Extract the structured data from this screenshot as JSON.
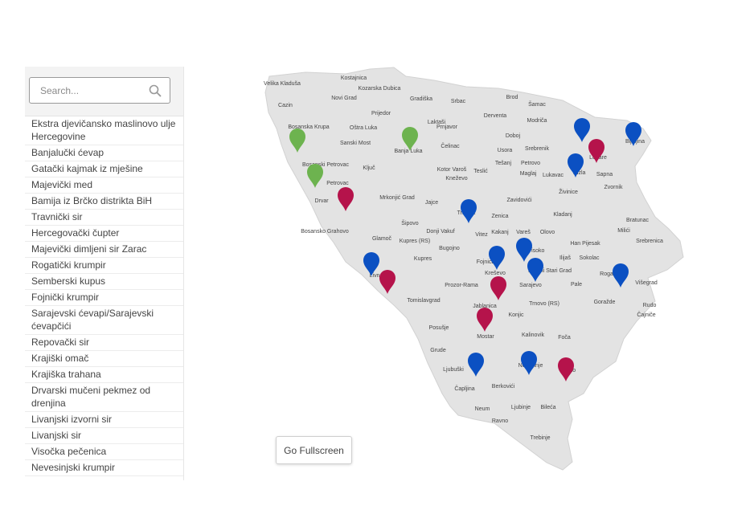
{
  "search": {
    "placeholder": "Search..."
  },
  "products": [
    "Ekstra djevičansko maslinovo ulje Hercegovine",
    "Banjalučki ćevap",
    "Gatački kajmak iz mješine",
    "Majevički med",
    "Bamija iz Brčko distrikta BiH",
    "Travnički sir",
    "Hercegovački čupter",
    "Majevički dimljeni sir Zarac",
    "Rogatički krumpir",
    "Semberski kupus",
    "Fojnički krumpir",
    "Sarajevski ćevapi/Sarajevski ćevapčići",
    "Repovački sir",
    "Krajiški omač",
    "Krajiška trahana",
    "Drvarski mučeni pekmez od drenjina",
    "Livanjski izvorni sir",
    "Livanjski sir",
    "Visočka pečenica",
    "Nevesinjski krumpir"
  ],
  "map": {
    "land_color": "#e3e3e3",
    "marker_colors": {
      "green": "#6db34f",
      "red": "#b5134b",
      "blue": "#0b50c2"
    },
    "cities": [
      "Velika Kladuša",
      "Kostajnica",
      "Kozarska Dubica",
      "Novi Grad",
      "Gradiška",
      "Srbac",
      "Brod",
      "Šamac",
      "Cazin",
      "Prijedor",
      "Laktaši",
      "Prnjavor",
      "Derventa",
      "Modriča",
      "Bosanska Krupa",
      "Oštra Luka",
      "Sanski Most",
      "Banja Luka",
      "Čelinac",
      "Doboj",
      "Usora",
      "Srebrenik",
      "Bijeljina",
      "Lopare",
      "Bosanski Petrovac",
      "Ključ",
      "Kotor Varoš",
      "Teslić",
      "Tešanj",
      "Petrovo",
      "Maglaj",
      "Lukavac",
      "Tuzla",
      "Sapna",
      "Zvornik",
      "Petrovac",
      "Kneževo",
      "Drvar",
      "Mrkonjić Grad",
      "Jajce",
      "Zavidovići",
      "Živinice",
      "Travnik",
      "Zenica",
      "Kladanj",
      "Bratunac",
      "Bosansko Grahovo",
      "Šipovo",
      "Donji Vakuf",
      "Vitez",
      "Kakanj",
      "Vareš",
      "Olovo",
      "Milići",
      "Glamoč",
      "Kupres (RS)",
      "Bugojno",
      "Han Pijesak",
      "Srebrenica",
      "Kupres",
      "Visoko",
      "Ilijaš",
      "Sokolac",
      "Fojnica",
      "Kreševo",
      "Istočni Stari Grad",
      "Rogatica",
      "Višegrad",
      "Livno",
      "Sarajevo",
      "Pale",
      "Prozor-Rama",
      "Jablanica",
      "Tomislavgrad",
      "Trnovo (RS)",
      "Goražde",
      "Rudo",
      "Čajniče",
      "Konjic",
      "Posušje",
      "Mostar",
      "Kalinovik",
      "Foča",
      "Grude",
      "Ljubuški",
      "Nevesinje",
      "Gacko",
      "Čapljina",
      "Berkovići",
      "Neum",
      "Ljubinje",
      "Bileća",
      "Ravno",
      "Trebinje"
    ],
    "markers": [
      "green",
      "green",
      "green",
      "red",
      "red",
      "red",
      "red",
      "red",
      "red",
      "blue",
      "blue",
      "blue",
      "blue",
      "blue",
      "blue",
      "blue",
      "blue",
      "blue",
      "blue",
      "blue"
    ]
  },
  "fullscreen_button": "Go Fullscreen"
}
